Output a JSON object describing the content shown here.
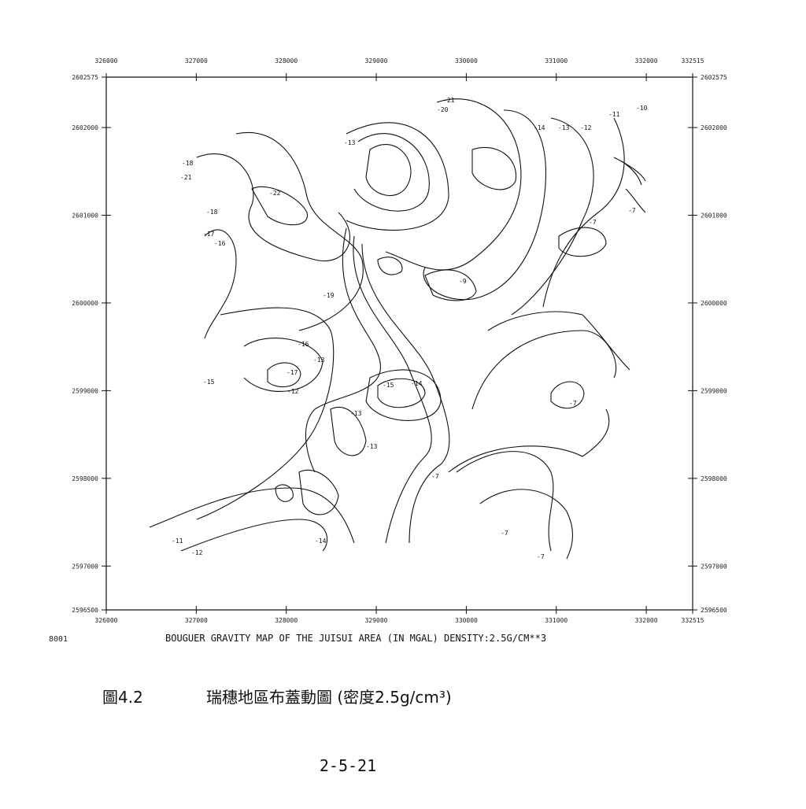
{
  "map": {
    "corner_label": "8001",
    "caption": "BOUGUER GRAVITY MAP OF THE JUISUI AREA (IN MGAL) DENSITY:2.5G/CM**3",
    "xlim": [
      326000,
      332515
    ],
    "ylim": [
      2596500,
      2602575
    ],
    "xticks": [
      326000,
      327000,
      328000,
      329000,
      330000,
      331000,
      332000,
      332515
    ],
    "yticks": [
      2596500,
      2597000,
      2598000,
      2599000,
      2600000,
      2601000,
      2602000,
      2602575
    ],
    "contour_labels": [
      -21,
      -20,
      -10,
      -11,
      -12,
      -13,
      -14,
      -13,
      -18,
      -22,
      -21,
      -18,
      -17,
      -16,
      -19,
      -16,
      -13,
      -17,
      -15,
      -14,
      -15,
      -13,
      -7,
      -9,
      -7,
      -7,
      -7,
      -12,
      -11,
      -14,
      -13,
      -12,
      -7,
      -7
    ]
  },
  "figure": {
    "number": "圖4.2",
    "title": "瑞穗地區布蓋動圖 (密度2.5g/cm³)"
  },
  "page_number": "2-5-21"
}
